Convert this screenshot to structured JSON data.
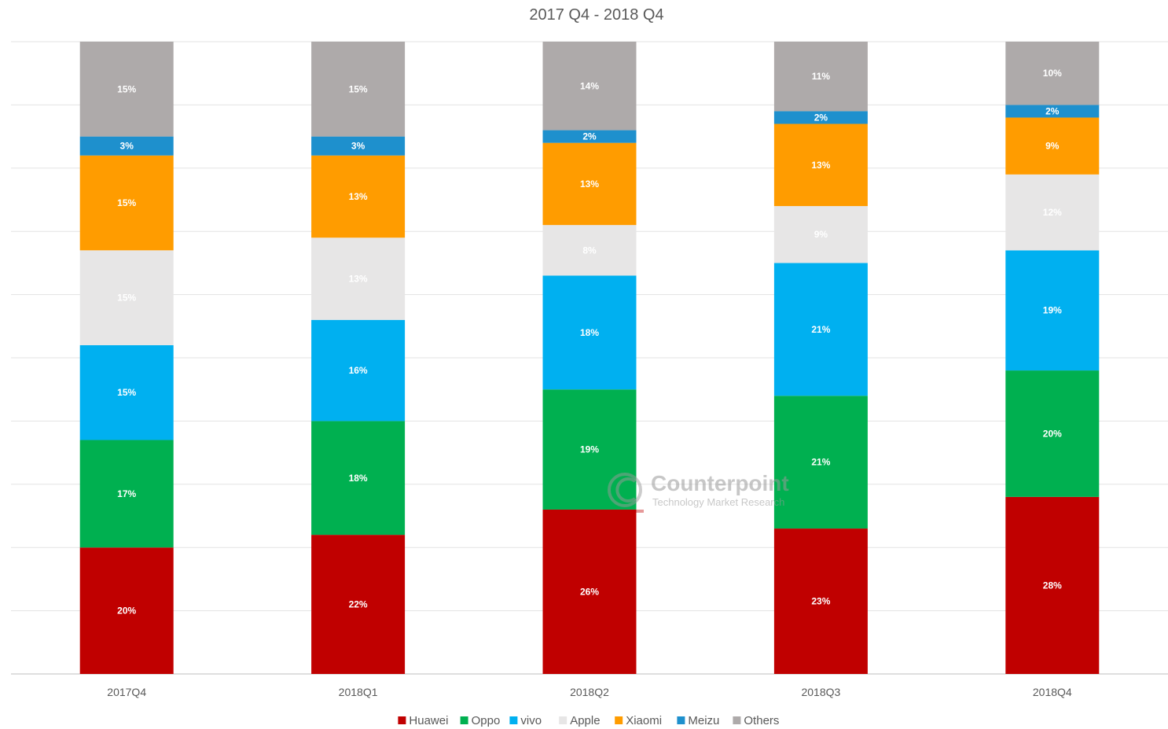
{
  "chart_data": {
    "type": "bar",
    "stacked": true,
    "title": "2017 Q4 - 2018 Q4",
    "categories": [
      "2017Q4",
      "2018Q1",
      "2018Q2",
      "2018Q3",
      "2018Q4"
    ],
    "series": [
      {
        "name": "Huawei",
        "color": "#c00000",
        "values": [
          20,
          22,
          26,
          23,
          28
        ],
        "labels": [
          "20%",
          "22%",
          "26%",
          "23%",
          "28%"
        ]
      },
      {
        "name": "Oppo",
        "color": "#00b050",
        "values": [
          17,
          18,
          19,
          21,
          20
        ],
        "labels": [
          "17%",
          "18%",
          "19%",
          "21%",
          "20%"
        ]
      },
      {
        "name": "vivo",
        "color": "#00b0f0",
        "values": [
          15,
          16,
          18,
          21,
          19
        ],
        "labels": [
          "15%",
          "16%",
          "18%",
          "21%",
          "19%"
        ]
      },
      {
        "name": "Apple",
        "color": "#e7e6e6",
        "values": [
          15,
          13,
          8,
          9,
          12
        ],
        "labels": [
          "15%",
          "13%",
          "8%",
          "9%",
          "12%"
        ]
      },
      {
        "name": "Xiaomi",
        "color": "#ff9c00",
        "values": [
          15,
          13,
          13,
          13,
          9
        ],
        "labels": [
          "15%",
          "13%",
          "13%",
          "13%",
          "9%"
        ]
      },
      {
        "name": "Meizu",
        "color": "#1e90cd",
        "values": [
          3,
          3,
          2,
          2,
          2
        ],
        "labels": [
          "3%",
          "3%",
          "2%",
          "2%",
          "2%"
        ]
      },
      {
        "name": "Others",
        "color": "#aeaaaa",
        "values": [
          15,
          15,
          14,
          11,
          10
        ],
        "labels": [
          "15%",
          "15%",
          "14%",
          "11%",
          "10%"
        ]
      }
    ],
    "ylim": [
      0,
      100
    ],
    "grid": true,
    "legend_position": "bottom"
  },
  "watermark": {
    "name": "Counterpoint",
    "tagline": "Technology Market Research"
  }
}
